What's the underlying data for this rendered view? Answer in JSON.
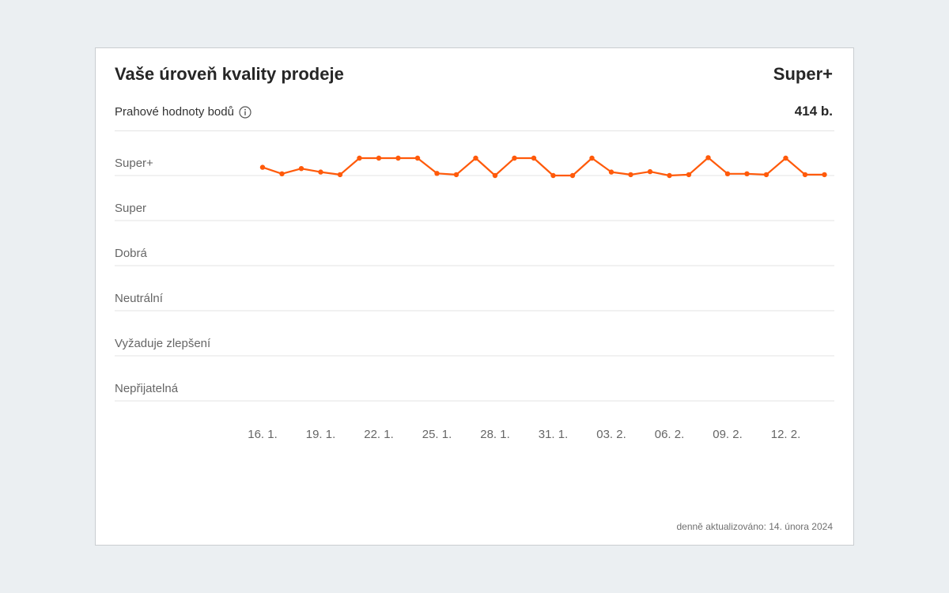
{
  "header": {
    "title": "Vaše úroveň kvality prodeje",
    "current_level": "Super+"
  },
  "threshold": {
    "label": "Prahové hodnoty bodů",
    "info_icon": "info-icon",
    "points": "414 b."
  },
  "footer": {
    "updated_label": "denně aktualizováno:",
    "updated_date": "14. února 2024"
  },
  "colors": {
    "line": "#ff5a0a",
    "grid": "#e3e3e3",
    "label": "#666666"
  },
  "chart_data": {
    "type": "line",
    "levels": [
      "Super+",
      "Super",
      "Dobrá",
      "Neutrální",
      "Vyžaduje zlepšení",
      "Nepřijatelná"
    ],
    "xticks": [
      "16. 1.",
      "19. 1.",
      "22. 1.",
      "25. 1.",
      "28. 1.",
      "31. 1.",
      "03. 2.",
      "06. 2.",
      "09. 2.",
      "12. 2."
    ],
    "series": [
      {
        "values": [
          0.19,
          0.04,
          0.16,
          0.08,
          0.02,
          0.4,
          0.4,
          0.4,
          0.4,
          0.05,
          0.02,
          0.4,
          0.0,
          0.4,
          0.4,
          0.0,
          0.0,
          0.4,
          0.08,
          0.02,
          0.09,
          0.0,
          0.02,
          0.41,
          0.04,
          0.04,
          0.02,
          0.4,
          0.02,
          0.02
        ]
      }
    ]
  }
}
